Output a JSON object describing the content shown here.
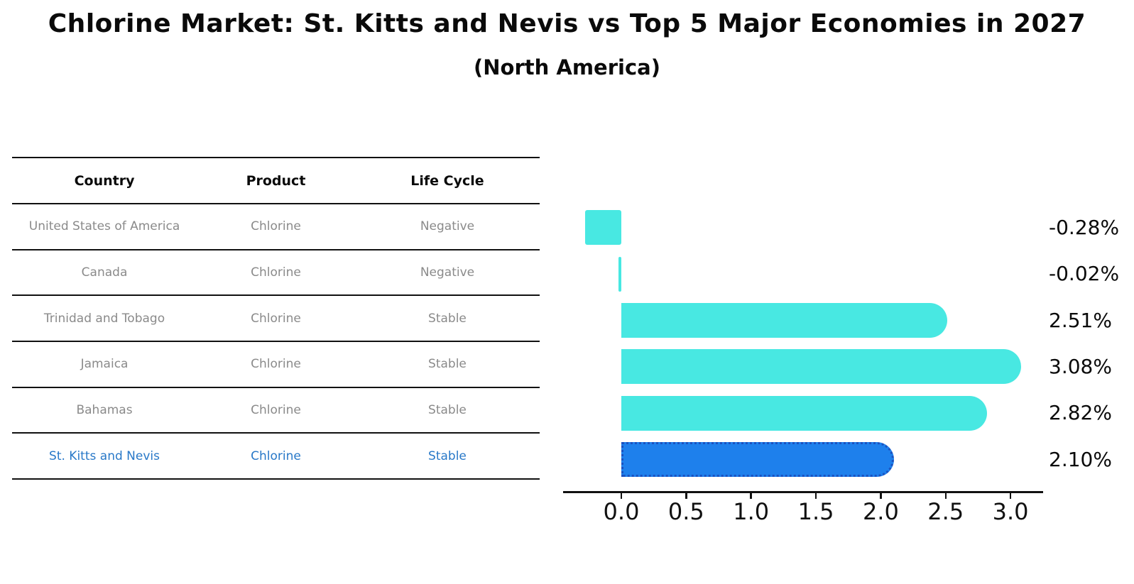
{
  "title": "Chlorine Market: St. Kitts and Nevis vs Top 5 Major Economies in 2027",
  "subtitle": "(North America)",
  "table": {
    "headers": [
      "Country",
      "Product",
      "Life Cycle"
    ],
    "rows": [
      {
        "country": "United States of America",
        "product": "Chlorine",
        "life_cycle": "Negative",
        "highlight": false
      },
      {
        "country": "Canada",
        "product": "Chlorine",
        "life_cycle": "Negative",
        "highlight": false
      },
      {
        "country": "Trinidad and Tobago",
        "product": "Chlorine",
        "life_cycle": "Stable",
        "highlight": false
      },
      {
        "country": "Jamaica",
        "product": "Chlorine",
        "life_cycle": "Stable",
        "highlight": false
      },
      {
        "country": "Bahamas",
        "product": "Chlorine",
        "life_cycle": "Stable",
        "highlight": false
      },
      {
        "country": "St. Kitts and Nevis",
        "product": "Chlorine",
        "life_cycle": "Stable",
        "highlight": true
      }
    ]
  },
  "chart_data": {
    "type": "bar",
    "orientation": "horizontal",
    "title": "Chlorine Market: St. Kitts and Nevis vs Top 5 Major Economies in 2027 (North America)",
    "categories": [
      "United States of America",
      "Canada",
      "Trinidad and Tobago",
      "Jamaica",
      "Bahamas",
      "St. Kitts and Nevis"
    ],
    "values": [
      -0.28,
      -0.02,
      2.51,
      3.08,
      2.82,
      2.1
    ],
    "value_labels": [
      "-0.28%",
      "-0.02%",
      "2.51%",
      "3.08%",
      "2.82%",
      "2.10%"
    ],
    "x_ticks": [
      0.0,
      0.5,
      1.0,
      1.5,
      2.0,
      2.5,
      3.0
    ],
    "x_tick_labels": [
      "0.0",
      "0.5",
      "1.0",
      "1.5",
      "2.0",
      "2.5",
      "3.0"
    ],
    "xlim": [
      -0.45,
      3.25
    ],
    "ylabel": "",
    "xlabel": "",
    "grid": false,
    "legend": false,
    "highlight_index": 5
  },
  "colors": {
    "bar": "#48E8E2",
    "highlight_bar": "#1E80EC",
    "highlight_border": "#1A52C0",
    "highlight_text": "#2878C8",
    "row_text": "#8a8a8a",
    "axis": "#111111"
  }
}
